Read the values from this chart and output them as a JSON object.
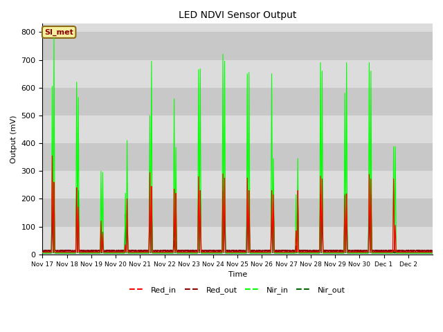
{
  "title": "LED NDVI Sensor Output",
  "xlabel": "Time",
  "ylabel": "Output (mV)",
  "ylim": [
    0,
    830
  ],
  "background_color": "#dcdcdc",
  "figure_color": "#ffffff",
  "legend_label": "SI_met",
  "legend_box_facecolor": "#f5f0a0",
  "legend_box_edgecolor": "#8B6914",
  "tick_labels": [
    "Nov 17",
    "Nov 18",
    "Nov 19",
    "Nov 20",
    "Nov 21",
    "Nov 22",
    "Nov 23",
    "Nov 24",
    "Nov 25",
    "Nov 26",
    "Nov 27",
    "Nov 28",
    "Nov 29",
    "Nov 30",
    "Dec 1",
    "Dec 2"
  ],
  "yticks": [
    0,
    100,
    200,
    300,
    400,
    500,
    600,
    700,
    800
  ],
  "series": {
    "Red_in": {
      "color": "#ff0000",
      "lw": 0.8
    },
    "Red_out": {
      "color": "#8B0000",
      "lw": 0.8
    },
    "Nir_in": {
      "color": "#00ff00",
      "lw": 0.8
    },
    "Nir_out": {
      "color": "#006400",
      "lw": 1.0
    }
  },
  "stripe_colors": [
    "#dcdcdc",
    "#c8c8c8"
  ],
  "peaks": [
    {
      "day": 0.4,
      "red_in": 355,
      "red_out": 225,
      "nir_in": 605,
      "nir_out": 215
    },
    {
      "day": 0.47,
      "red_in": 260,
      "red_out": 210,
      "nir_in": 780,
      "nir_out": 225
    },
    {
      "day": 1.4,
      "red_in": 240,
      "red_out": 230,
      "nir_in": 620,
      "nir_out": 235
    },
    {
      "day": 1.47,
      "red_in": 170,
      "red_out": 195,
      "nir_in": 565,
      "nir_out": 230
    },
    {
      "day": 2.4,
      "red_in": 120,
      "red_out": 80,
      "nir_in": 300,
      "nir_out": 85
    },
    {
      "day": 2.47,
      "red_in": 75,
      "red_out": 70,
      "nir_in": 295,
      "nir_out": 80
    },
    {
      "day": 3.4,
      "red_in": 35,
      "red_out": 20,
      "nir_in": 220,
      "nir_out": 145
    },
    {
      "day": 3.47,
      "red_in": 200,
      "red_out": 175,
      "nir_in": 410,
      "nir_out": 155
    },
    {
      "day": 4.4,
      "red_in": 295,
      "red_out": 205,
      "nir_in": 500,
      "nir_out": 205
    },
    {
      "day": 4.47,
      "red_in": 245,
      "red_out": 235,
      "nir_in": 695,
      "nir_out": 225
    },
    {
      "day": 5.4,
      "red_in": 235,
      "red_out": 50,
      "nir_in": 560,
      "nir_out": 150
    },
    {
      "day": 5.47,
      "red_in": 220,
      "red_out": 45,
      "nir_in": 385,
      "nir_out": 145
    },
    {
      "day": 6.4,
      "red_in": 280,
      "red_out": 225,
      "nir_in": 665,
      "nir_out": 225
    },
    {
      "day": 6.47,
      "red_in": 230,
      "red_out": 220,
      "nir_in": 668,
      "nir_out": 222
    },
    {
      "day": 7.4,
      "red_in": 290,
      "red_out": 225,
      "nir_in": 720,
      "nir_out": 225
    },
    {
      "day": 7.47,
      "red_in": 275,
      "red_out": 218,
      "nir_in": 695,
      "nir_out": 220
    },
    {
      "day": 8.4,
      "red_in": 275,
      "red_out": 225,
      "nir_in": 650,
      "nir_out": 225
    },
    {
      "day": 8.47,
      "red_in": 230,
      "red_out": 218,
      "nir_in": 655,
      "nir_out": 218
    },
    {
      "day": 9.4,
      "red_in": 230,
      "red_out": 215,
      "nir_in": 650,
      "nir_out": 215
    },
    {
      "day": 9.47,
      "red_in": 215,
      "red_out": 210,
      "nir_in": 345,
      "nir_out": 208
    },
    {
      "day": 10.4,
      "red_in": 85,
      "red_out": 30,
      "nir_in": 215,
      "nir_out": 22
    },
    {
      "day": 10.47,
      "red_in": 230,
      "red_out": 212,
      "nir_in": 345,
      "nir_out": 205
    },
    {
      "day": 11.4,
      "red_in": 282,
      "red_out": 215,
      "nir_in": 690,
      "nir_out": 212
    },
    {
      "day": 11.47,
      "red_in": 272,
      "red_out": 202,
      "nir_in": 660,
      "nir_out": 202
    },
    {
      "day": 12.4,
      "red_in": 212,
      "red_out": 215,
      "nir_in": 580,
      "nir_out": 212
    },
    {
      "day": 12.47,
      "red_in": 218,
      "red_out": 212,
      "nir_in": 690,
      "nir_out": 218
    },
    {
      "day": 13.4,
      "red_in": 288,
      "red_out": 215,
      "nir_in": 690,
      "nir_out": 218
    },
    {
      "day": 13.47,
      "red_in": 272,
      "red_out": 212,
      "nir_in": 660,
      "nir_out": 215
    },
    {
      "day": 14.4,
      "red_in": 272,
      "red_out": 12,
      "nir_in": 388,
      "nir_out": 12
    },
    {
      "day": 14.47,
      "red_in": 105,
      "red_out": 12,
      "nir_in": 388,
      "nir_out": 12
    }
  ]
}
